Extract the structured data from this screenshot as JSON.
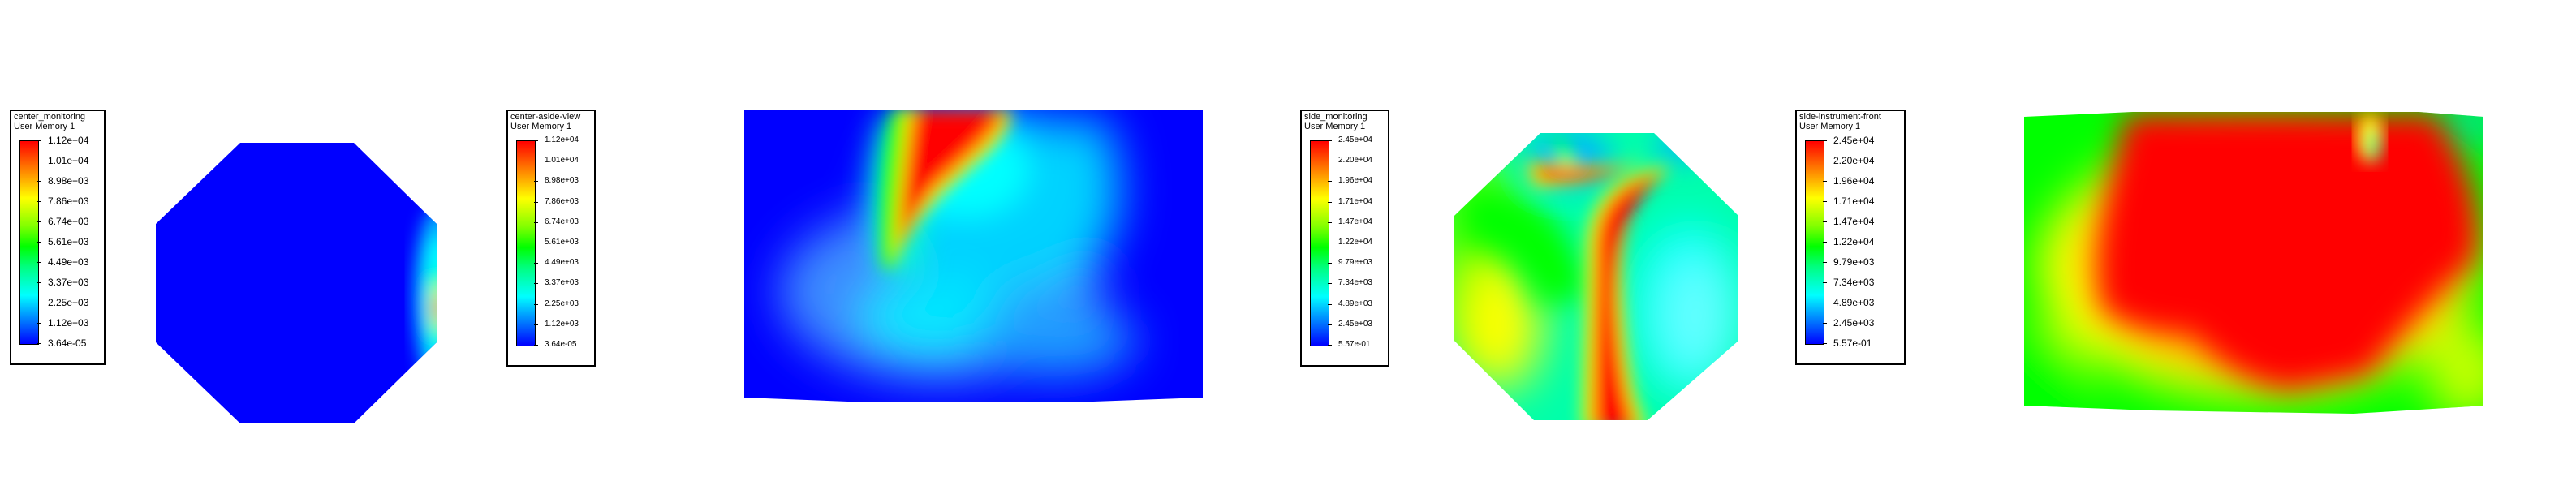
{
  "chart_data": [
    {
      "type": "heatmap",
      "title": "center_monitoring",
      "subtitle": "User Memory 1",
      "colorbar_ticks": [
        "1.12e+04",
        "1.01e+04",
        "8.98e+03",
        "7.86e+03",
        "6.74e+03",
        "5.61e+03",
        "4.49e+03",
        "3.37e+03",
        "2.25e+03",
        "1.12e+03",
        "3.64e-05"
      ],
      "range": [
        3.64e-05,
        11200
      ],
      "colormap": [
        "#0000ff",
        "#00ffff",
        "#00ff00",
        "#ffff00",
        "#ff0000"
      ],
      "shape": "octagon"
    },
    {
      "type": "heatmap",
      "title": "center-aside-view",
      "subtitle": "User Memory 1",
      "colorbar_ticks": [
        "1.12e+04",
        "1.01e+04",
        "8.98e+03",
        "7.86e+03",
        "6.74e+03",
        "5.61e+03",
        "4.49e+03",
        "3.37e+03",
        "2.25e+03",
        "1.12e+03",
        "3.64e-05"
      ],
      "range": [
        3.64e-05,
        11200
      ],
      "colormap": [
        "#0000ff",
        "#00ffff",
        "#00ff00",
        "#ffff00",
        "#ff0000"
      ],
      "shape": "rectangle"
    },
    {
      "type": "heatmap",
      "title": "side_monitoring",
      "subtitle": "User Memory 1",
      "colorbar_ticks": [
        "2.45e+04",
        "2.20e+04",
        "1.96e+04",
        "1.71e+04",
        "1.47e+04",
        "1.22e+04",
        "9.79e+03",
        "7.34e+03",
        "4.89e+03",
        "2.45e+03",
        "5.57e-01"
      ],
      "range": [
        0.557,
        24500
      ],
      "colormap": [
        "#0000ff",
        "#00ffff",
        "#00ff00",
        "#ffff00",
        "#ff0000"
      ],
      "shape": "octagon"
    },
    {
      "type": "heatmap",
      "title": "side-instrument-front",
      "subtitle": "User Memory 1",
      "colorbar_ticks": [
        "2.45e+04",
        "2.20e+04",
        "1.96e+04",
        "1.71e+04",
        "1.47e+04",
        "1.22e+04",
        "9.79e+03",
        "7.34e+03",
        "4.89e+03",
        "2.45e+03",
        "5.57e-01"
      ],
      "range": [
        0.557,
        24500
      ],
      "colormap": [
        "#0000ff",
        "#00ffff",
        "#00ff00",
        "#ffff00",
        "#ff0000"
      ],
      "shape": "rectangle"
    }
  ]
}
